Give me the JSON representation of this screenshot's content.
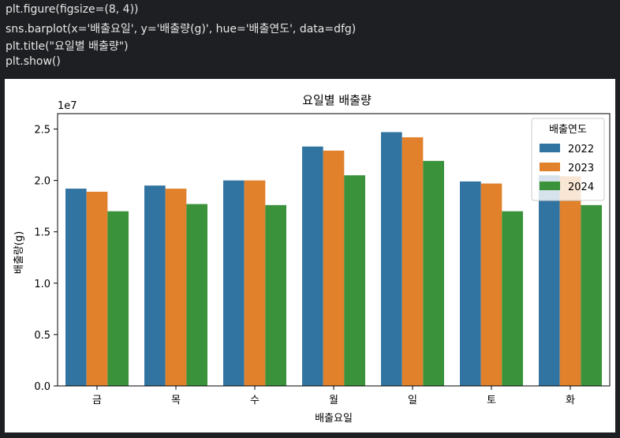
{
  "code": {
    "lines": [
      "plt.figure(figsize=(8, 4))",
      "sns.barplot(x='배출요일', y='배출량(g)', hue='배출연도', data=dfg)",
      "plt.title(\"요일별 배출량\")",
      "plt.show()"
    ]
  },
  "chart_data": {
    "type": "bar",
    "title": "요일별 배출량",
    "xlabel": "배출요일",
    "ylabel": "배출량(g)",
    "offset_label": "1e7",
    "categories": [
      "금",
      "목",
      "수",
      "월",
      "일",
      "토",
      "화"
    ],
    "ylim": [
      0,
      2.65
    ],
    "yticks": [
      "0.0",
      "0.5",
      "1.0",
      "1.5",
      "2.0",
      "2.5"
    ],
    "legend_title": "배출연도",
    "legend_position": "top-right",
    "grid": false,
    "series": [
      {
        "name": "2022",
        "color": "#3274a1",
        "values": [
          1.92,
          1.95,
          2.0,
          2.33,
          2.47,
          1.99,
          2.05
        ]
      },
      {
        "name": "2023",
        "color": "#e1812c",
        "values": [
          1.89,
          1.92,
          2.0,
          2.29,
          2.42,
          1.97,
          2.04
        ]
      },
      {
        "name": "2024",
        "color": "#3a923a",
        "values": [
          1.7,
          1.77,
          1.76,
          2.05,
          2.19,
          1.7,
          1.76
        ]
      }
    ]
  }
}
